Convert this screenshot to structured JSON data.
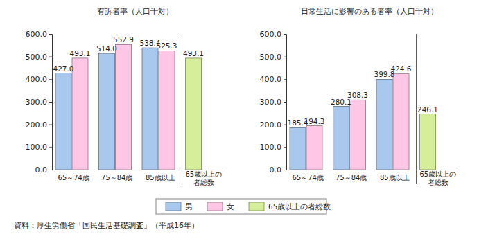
{
  "chart_data": [
    {
      "type": "bar",
      "title": "有訴者率（人口千対）",
      "categories": [
        "65～74歳",
        "75～84歳",
        "85歳以上",
        "65歳以上の者総数"
      ],
      "series": [
        {
          "name": "男",
          "color": "#a9c8ee",
          "values": [
            427.0,
            514.0,
            538.4,
            null
          ],
          "value_labels": [
            "427.0",
            "514.0",
            "538.4",
            null
          ]
        },
        {
          "name": "女",
          "color": "#ffc6e6",
          "values": [
            493.1,
            552.9,
            525.3,
            null
          ],
          "value_labels": [
            "493.1",
            "552.9",
            "525.3",
            null
          ]
        },
        {
          "name": "65歳以上の者総数",
          "color": "#d6ee9a",
          "values": [
            null,
            null,
            null,
            493.1
          ],
          "value_labels": [
            null,
            null,
            null,
            "493.1"
          ]
        }
      ],
      "ylim": [
        0,
        600
      ],
      "yticks": [
        {
          "value": 0,
          "label": "0.0"
        },
        {
          "value": 100,
          "label": "100.0"
        },
        {
          "value": 200,
          "label": "200.0"
        },
        {
          "value": 300,
          "label": "300.0"
        },
        {
          "value": 400,
          "label": "400.0"
        },
        {
          "value": 500,
          "label": "500.0"
        },
        {
          "value": 600,
          "label": "600.0"
        }
      ],
      "data_labels": true,
      "grid": false,
      "legend": "bottom"
    },
    {
      "type": "bar",
      "title": "日常生活に影響のある者率（人口千対）",
      "categories": [
        "65～74歳",
        "75～84歳",
        "85歳以上",
        "65歳以上の者総数"
      ],
      "series": [
        {
          "name": "男",
          "color": "#a9c8ee",
          "values": [
            185.4,
            280.1,
            399.8,
            null
          ],
          "value_labels": [
            "185.4",
            "280.1",
            "399.8",
            null
          ]
        },
        {
          "name": "女",
          "color": "#ffc6e6",
          "values": [
            194.3,
            308.3,
            424.6,
            null
          ],
          "value_labels": [
            "194.3",
            "308.3",
            "424.6",
            null
          ]
        },
        {
          "name": "65歳以上の者総数",
          "color": "#d6ee9a",
          "values": [
            null,
            null,
            null,
            246.1
          ],
          "value_labels": [
            null,
            null,
            null,
            "246.1"
          ]
        }
      ],
      "ylim": [
        0,
        600
      ],
      "yticks": [
        {
          "value": 0,
          "label": "0.0"
        },
        {
          "value": 100,
          "label": "100.0"
        },
        {
          "value": 200,
          "label": "200.0"
        },
        {
          "value": 300,
          "label": "300.0"
        },
        {
          "value": 400,
          "label": "400.0"
        },
        {
          "value": 500,
          "label": "500.0"
        },
        {
          "value": 600,
          "label": "600.0"
        }
      ],
      "data_labels": true,
      "grid": false,
      "legend": "bottom"
    }
  ],
  "source": "資料：厚生労働省「国民生活基礎調査」（平成16年）"
}
